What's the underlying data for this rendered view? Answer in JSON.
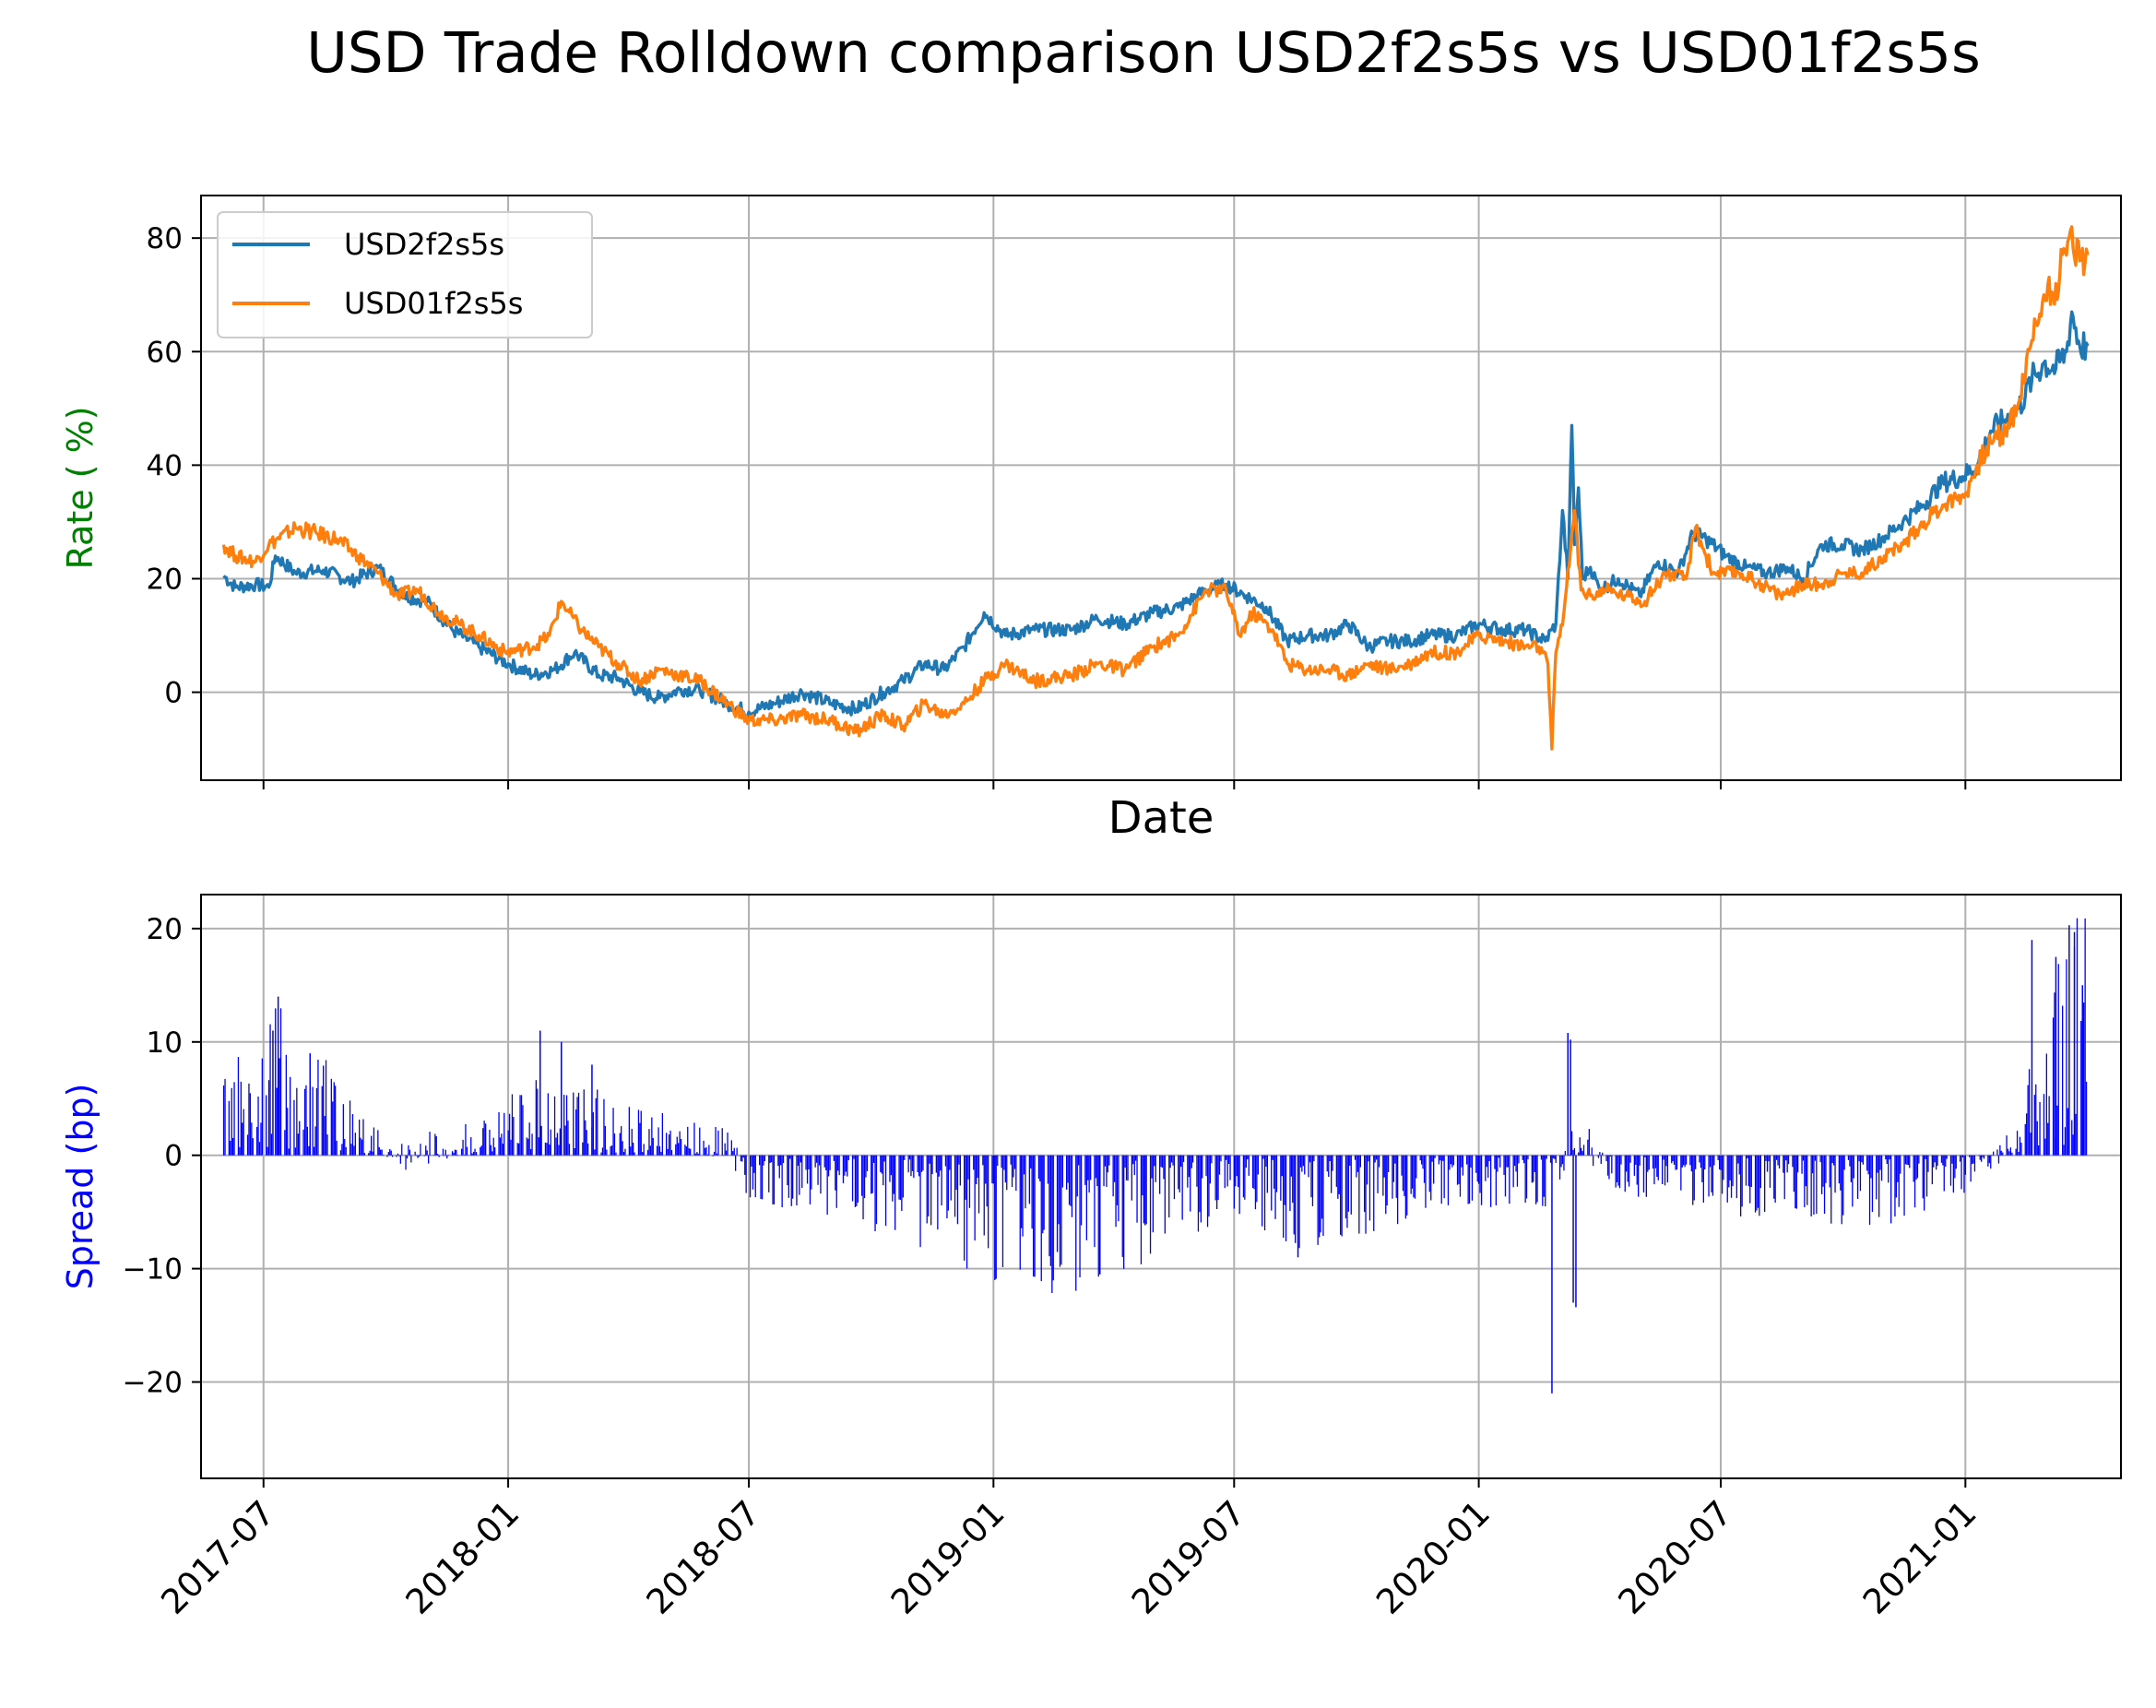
{
  "chart_data": [
    {
      "type": "line",
      "title": "USD Trade Rolldown comparison USD2f2s5s vs USD01f2s5s",
      "xlabel": "Date",
      "ylabel": "Rate  ( %)",
      "ylabel_color": "#008000",
      "xlim": [
        "2017-05-15",
        "2021-04-28"
      ],
      "ylim": [
        -15.5,
        87.5
      ],
      "yticks": [
        0,
        20,
        40,
        60,
        80
      ],
      "xticks": [
        "2017-07",
        "2018-01",
        "2018-07",
        "2019-01",
        "2019-07",
        "2020-01",
        "2020-07",
        "2021-01"
      ],
      "grid": true,
      "legend_position": "top-left",
      "x_unit": "date",
      "series": [
        {
          "name": "USD2f2s5s",
          "color": "#1f77b4",
          "points": [
            [
              "2017-06-01",
              20.5
            ],
            [
              "2017-06-10",
              18.5
            ],
            [
              "2017-06-25",
              19
            ],
            [
              "2017-07-05",
              18.5
            ],
            [
              "2017-07-10",
              24
            ],
            [
              "2017-07-25",
              21
            ],
            [
              "2017-08-15",
              21.5
            ],
            [
              "2017-09-05",
              19.5
            ],
            [
              "2017-09-25",
              22
            ],
            [
              "2017-10-15",
              17
            ],
            [
              "2017-11-01",
              16
            ],
            [
              "2017-11-20",
              11
            ],
            [
              "2017-12-10",
              8
            ],
            [
              "2018-01-01",
              5
            ],
            [
              "2018-01-20",
              3
            ],
            [
              "2018-02-05",
              4
            ],
            [
              "2018-02-20",
              7
            ],
            [
              "2018-03-10",
              3
            ],
            [
              "2018-03-25",
              2.5
            ],
            [
              "2018-04-10",
              0
            ],
            [
              "2018-04-25",
              -1
            ],
            [
              "2018-05-10",
              0.5
            ],
            [
              "2018-05-25",
              0.5
            ],
            [
              "2018-06-15",
              -2
            ],
            [
              "2018-07-01",
              -3.5
            ],
            [
              "2018-07-20",
              -2
            ],
            [
              "2018-08-10",
              0
            ],
            [
              "2018-09-01",
              -2
            ],
            [
              "2018-09-20",
              -3
            ],
            [
              "2018-10-10",
              0
            ],
            [
              "2018-10-25",
              2
            ],
            [
              "2018-11-10",
              5
            ],
            [
              "2018-11-25",
              4
            ],
            [
              "2018-12-10",
              8
            ],
            [
              "2018-12-25",
              14
            ],
            [
              "2019-01-10",
              10
            ],
            [
              "2019-02-01",
              11
            ],
            [
              "2019-03-01",
              11
            ],
            [
              "2019-03-20",
              13
            ],
            [
              "2019-04-10",
              12
            ],
            [
              "2019-05-01",
              14
            ],
            [
              "2019-05-20",
              15
            ],
            [
              "2019-06-10",
              18
            ],
            [
              "2019-06-25",
              19
            ],
            [
              "2019-07-10",
              17
            ],
            [
              "2019-07-25",
              15
            ],
            [
              "2019-08-10",
              9
            ],
            [
              "2019-08-25",
              10
            ],
            [
              "2019-09-10",
              10
            ],
            [
              "2019-09-25",
              12
            ],
            [
              "2019-10-10",
              8
            ],
            [
              "2019-10-25",
              9
            ],
            [
              "2019-11-10",
              9
            ],
            [
              "2019-11-25",
              10
            ],
            [
              "2019-12-15",
              10
            ],
            [
              "2020-01-01",
              12
            ],
            [
              "2020-01-20",
              11
            ],
            [
              "2020-02-05",
              11
            ],
            [
              "2020-02-20",
              9
            ],
            [
              "2020-02-25",
              11
            ],
            [
              "2020-02-28",
              12
            ],
            [
              "2020-03-04",
              32
            ],
            [
              "2020-03-08",
              20
            ],
            [
              "2020-03-11",
              47
            ],
            [
              "2020-03-13",
              26
            ],
            [
              "2020-03-16",
              36
            ],
            [
              "2020-03-19",
              20
            ],
            [
              "2020-03-25",
              22
            ],
            [
              "2020-04-01",
              18
            ],
            [
              "2020-04-15",
              20
            ],
            [
              "2020-05-01",
              17
            ],
            [
              "2020-05-15",
              23
            ],
            [
              "2020-05-30",
              21
            ],
            [
              "2020-06-10",
              28
            ],
            [
              "2020-06-20",
              27
            ],
            [
              "2020-07-05",
              24
            ],
            [
              "2020-07-20",
              22
            ],
            [
              "2020-08-05",
              21
            ],
            [
              "2020-08-20",
              22
            ],
            [
              "2020-09-01",
              20
            ],
            [
              "2020-09-15",
              26
            ],
            [
              "2020-09-30",
              26
            ],
            [
              "2020-10-15",
              25
            ],
            [
              "2020-10-30",
              27
            ],
            [
              "2020-11-15",
              30
            ],
            [
              "2020-11-30",
              33
            ],
            [
              "2020-12-15",
              37
            ],
            [
              "2020-12-30",
              38
            ],
            [
              "2021-01-10",
              40
            ],
            [
              "2021-01-20",
              46
            ],
            [
              "2021-01-31",
              48
            ],
            [
              "2021-02-10",
              50
            ],
            [
              "2021-02-20",
              55
            ],
            [
              "2021-03-01",
              58
            ],
            [
              "2021-03-10",
              57
            ],
            [
              "2021-03-18",
              60
            ],
            [
              "2021-03-22",
              67
            ],
            [
              "2021-03-28",
              61
            ],
            [
              "2021-04-03",
              61
            ]
          ]
        },
        {
          "name": "USD01f2s5s",
          "color": "#ff7f0e",
          "points": [
            [
              "2017-06-01",
              26
            ],
            [
              "2017-06-10",
              24
            ],
            [
              "2017-06-25",
              23
            ],
            [
              "2017-07-05",
              26
            ],
            [
              "2017-07-25",
              29
            ],
            [
              "2017-08-10",
              28
            ],
            [
              "2017-08-25",
              27
            ],
            [
              "2017-09-10",
              24
            ],
            [
              "2017-09-25",
              21
            ],
            [
              "2017-10-10",
              17
            ],
            [
              "2017-10-25",
              18
            ],
            [
              "2017-11-10",
              14
            ],
            [
              "2017-11-25",
              12
            ],
            [
              "2017-12-10",
              10
            ],
            [
              "2017-12-30",
              7
            ],
            [
              "2018-01-20",
              8
            ],
            [
              "2018-02-01",
              10
            ],
            [
              "2018-02-10",
              16
            ],
            [
              "2018-02-25",
              11
            ],
            [
              "2018-03-10",
              8
            ],
            [
              "2018-03-25",
              5
            ],
            [
              "2018-04-10",
              2
            ],
            [
              "2018-04-25",
              4
            ],
            [
              "2018-05-10",
              3
            ],
            [
              "2018-05-25",
              2
            ],
            [
              "2018-06-15",
              -2
            ],
            [
              "2018-07-01",
              -5
            ],
            [
              "2018-07-20",
              -5
            ],
            [
              "2018-08-10",
              -4
            ],
            [
              "2018-09-01",
              -5
            ],
            [
              "2018-09-20",
              -7
            ],
            [
              "2018-10-10",
              -4
            ],
            [
              "2018-10-25",
              -6
            ],
            [
              "2018-11-10",
              -2
            ],
            [
              "2018-11-25",
              -4
            ],
            [
              "2018-12-10",
              -2
            ],
            [
              "2018-12-25",
              2
            ],
            [
              "2019-01-10",
              5
            ],
            [
              "2019-02-01",
              2
            ],
            [
              "2019-03-01",
              3
            ],
            [
              "2019-03-20",
              5
            ],
            [
              "2019-04-10",
              4
            ],
            [
              "2019-05-01",
              8
            ],
            [
              "2019-05-20",
              10
            ],
            [
              "2019-06-10",
              18
            ],
            [
              "2019-06-25",
              18
            ],
            [
              "2019-07-05",
              10
            ],
            [
              "2019-07-15",
              14
            ],
            [
              "2019-07-30",
              11
            ],
            [
              "2019-08-10",
              5
            ],
            [
              "2019-08-25",
              4
            ],
            [
              "2019-09-10",
              4
            ],
            [
              "2019-09-25",
              3
            ],
            [
              "2019-10-10",
              5
            ],
            [
              "2019-10-25",
              4
            ],
            [
              "2019-11-10",
              5
            ],
            [
              "2019-11-25",
              7
            ],
            [
              "2019-12-15",
              7
            ],
            [
              "2020-01-01",
              10
            ],
            [
              "2020-01-20",
              9
            ],
            [
              "2020-02-05",
              8
            ],
            [
              "2020-02-15",
              8
            ],
            [
              "2020-02-22",
              5
            ],
            [
              "2020-02-25",
              -10
            ],
            [
              "2020-02-28",
              7
            ],
            [
              "2020-03-05",
              14
            ],
            [
              "2020-03-10",
              25
            ],
            [
              "2020-03-13",
              32
            ],
            [
              "2020-03-18",
              18
            ],
            [
              "2020-03-25",
              17
            ],
            [
              "2020-04-05",
              18
            ],
            [
              "2020-04-20",
              17
            ],
            [
              "2020-05-05",
              16
            ],
            [
              "2020-05-20",
              21
            ],
            [
              "2020-06-05",
              20
            ],
            [
              "2020-06-12",
              29
            ],
            [
              "2020-06-25",
              21
            ],
            [
              "2020-07-15",
              21
            ],
            [
              "2020-08-01",
              19
            ],
            [
              "2020-08-15",
              17
            ],
            [
              "2020-09-01",
              19
            ],
            [
              "2020-09-15",
              19
            ],
            [
              "2020-10-01",
              21
            ],
            [
              "2020-10-15",
              21
            ],
            [
              "2020-11-01",
              24
            ],
            [
              "2020-11-15",
              26
            ],
            [
              "2020-12-01",
              30
            ],
            [
              "2020-12-15",
              33
            ],
            [
              "2021-01-01",
              35
            ],
            [
              "2021-01-10",
              40
            ],
            [
              "2021-01-20",
              44
            ],
            [
              "2021-01-31",
              46
            ],
            [
              "2021-02-10",
              51
            ],
            [
              "2021-02-20",
              62
            ],
            [
              "2021-03-01",
              70
            ],
            [
              "2021-03-10",
              72
            ],
            [
              "2021-03-18",
              77
            ],
            [
              "2021-03-22",
              82
            ],
            [
              "2021-03-28",
              76
            ],
            [
              "2021-04-03",
              77
            ]
          ]
        }
      ]
    },
    {
      "type": "bar",
      "xlabel": "",
      "ylabel": "Spread (bp)",
      "ylabel_color": "#0000ff",
      "bar_color": "#0000ff",
      "xlim": [
        "2017-05-15",
        "2021-04-28"
      ],
      "ylim": [
        -28.5,
        23
      ],
      "yticks": [
        -20,
        -10,
        0,
        10,
        20
      ],
      "xticks": [
        "2017-07",
        "2018-01",
        "2018-07",
        "2019-01",
        "2019-07",
        "2020-01",
        "2020-07",
        "2021-01"
      ],
      "grid": true,
      "x_unit": "date",
      "spread_profile": [
        [
          "2017-06-01",
          4
        ],
        [
          "2017-07-10",
          8
        ],
        [
          "2017-08-10",
          6
        ],
        [
          "2017-09-15",
          2
        ],
        [
          "2017-10-15",
          0
        ],
        [
          "2017-12-01",
          1.5
        ],
        [
          "2018-01-20",
          4
        ],
        [
          "2018-02-15",
          4
        ],
        [
          "2018-04-15",
          2.5
        ],
        [
          "2018-06-15",
          1
        ],
        [
          "2018-07-01",
          -2.5
        ],
        [
          "2018-09-15",
          -3.5
        ],
        [
          "2018-11-15",
          -5
        ],
        [
          "2019-01-15",
          -7.5
        ],
        [
          "2019-03-15",
          -7
        ],
        [
          "2019-05-15",
          -5
        ],
        [
          "2019-07-01",
          -3
        ],
        [
          "2019-08-15",
          -5
        ],
        [
          "2019-10-15",
          -4
        ],
        [
          "2019-12-15",
          -2.5
        ],
        [
          "2020-02-20",
          -3
        ],
        [
          "2020-03-15",
          2
        ],
        [
          "2020-04-15",
          -2
        ],
        [
          "2020-07-01",
          -3
        ],
        [
          "2020-09-15",
          -4
        ],
        [
          "2020-11-15",
          -3.5
        ],
        [
          "2021-01-10",
          -1.5
        ],
        [
          "2021-02-10",
          2
        ],
        [
          "2021-03-01",
          8
        ],
        [
          "2021-04-03",
          14
        ]
      ],
      "spread_spikes": [
        [
          "2017-07-12",
          14
        ],
        [
          "2017-07-08",
          11
        ],
        [
          "2017-08-05",
          9
        ],
        [
          "2018-01-25",
          11
        ],
        [
          "2018-02-10",
          10
        ],
        [
          "2018-03-05",
          8
        ],
        [
          "2019-01-02",
          -11
        ],
        [
          "2019-03-22",
          -10.5
        ],
        [
          "2019-08-18",
          -9
        ],
        [
          "2020-02-25",
          -21
        ],
        [
          "2020-03-08",
          10.8
        ],
        [
          "2020-03-10",
          10.2
        ],
        [
          "2020-03-14",
          -13.4
        ],
        [
          "2020-03-12",
          -13
        ],
        [
          "2021-02-20",
          19
        ],
        [
          "2021-03-10",
          17.5
        ],
        [
          "2021-03-20",
          20.3
        ],
        [
          "2021-03-24",
          19.7
        ],
        [
          "2021-03-30",
          15
        ]
      ]
    }
  ]
}
